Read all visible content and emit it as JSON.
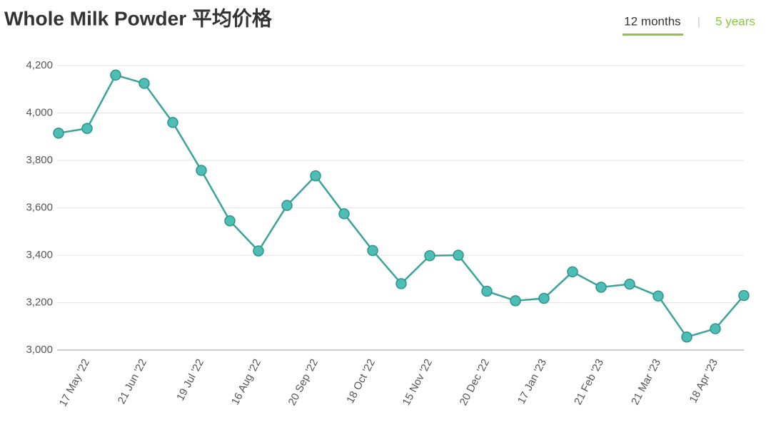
{
  "tabs": {
    "active": "12 months",
    "separator": "|",
    "other": "5 years"
  },
  "chart_data": {
    "type": "line",
    "title": "Whole Milk Powder 平均价格",
    "categories": [
      null,
      "17 May '22",
      null,
      "21 Jun '22",
      null,
      "19 Jul '22",
      null,
      "16 Aug '22",
      null,
      "20 Sep '22",
      null,
      "18 Oct '22",
      null,
      "15 Nov '22",
      null,
      "20 Dec '22",
      null,
      "17 Jan '23",
      null,
      "21 Feb '23",
      null,
      "21 Mar '23",
      null,
      "18 Apr '23",
      null
    ],
    "series": [
      {
        "name": "Whole Milk Powder",
        "color": "#3aa39b",
        "values": [
          3915,
          3935,
          4160,
          4125,
          3960,
          3758,
          3545,
          3418,
          3610,
          3735,
          3575,
          3420,
          3280,
          3398,
          3400,
          3248,
          3208,
          3218,
          3330,
          3265,
          3278,
          3228,
          3055,
          3090,
          3230
        ]
      }
    ],
    "ylim": [
      3000,
      4200
    ],
    "yticks": [
      {
        "value": 3000,
        "label": "3,000"
      },
      {
        "value": 3200,
        "label": "3,200"
      },
      {
        "value": 3400,
        "label": "3,400"
      },
      {
        "value": 3600,
        "label": "3,600"
      },
      {
        "value": 3800,
        "label": "3,800"
      },
      {
        "value": 4000,
        "label": "4,000"
      },
      {
        "value": 4200,
        "label": "4,200"
      }
    ],
    "grid": true
  }
}
